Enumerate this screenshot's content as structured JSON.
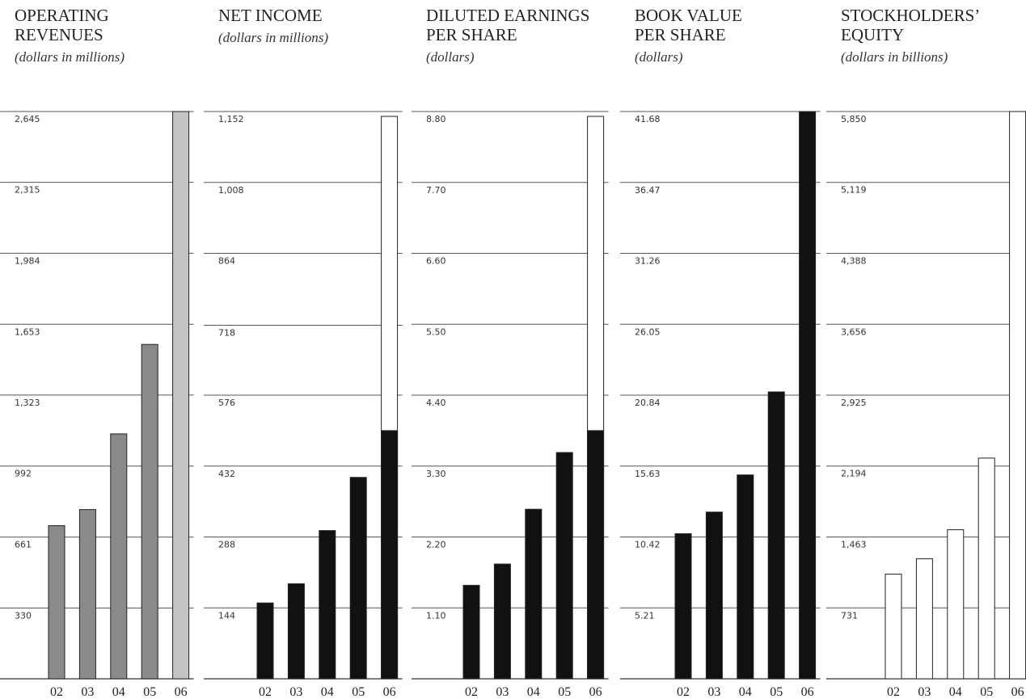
{
  "chart_data": [
    {
      "type": "bar",
      "title": [
        "OPERATING",
        "REVENUES"
      ],
      "subtitle": "(dollars in millions)",
      "categories": [
        "02",
        "03",
        "04",
        "05",
        "06"
      ],
      "values": [
        714,
        789,
        1142,
        1559,
        2645
      ],
      "colors": [
        "#8a8a8a",
        "#8a8a8a",
        "#8a8a8a",
        "#8a8a8a",
        "#c4c4c4"
      ],
      "ylim": [
        0,
        2645
      ],
      "yticks": [
        330,
        661,
        992,
        {
          "value": 1323,
          "label": "1,323"
        },
        {
          "value": 1653,
          "label": "1,653"
        },
        {
          "value": 1984,
          "label": "1,984"
        },
        {
          "value": 2315,
          "label": "2,315"
        },
        {
          "value": 2645,
          "label": "2,645"
        }
      ],
      "grid": true,
      "frame_last": false
    },
    {
      "type": "bar",
      "title": [
        "NET INCOME"
      ],
      "subtitle": "(dollars in millions)",
      "categories": [
        "02",
        "03",
        "04",
        "05",
        "06"
      ],
      "values": [
        154,
        193,
        301,
        409,
        504
      ],
      "colors": [
        "#111111",
        "#111111",
        "#111111",
        "#111111",
        "#111111"
      ],
      "ylim": [
        0,
        1152
      ],
      "yticks": [
        144,
        288,
        432,
        576,
        718,
        864,
        {
          "value": 1008,
          "label": "1,008"
        },
        {
          "value": 1152,
          "label": "1,152"
        }
      ],
      "grid": true,
      "frame_last": true
    },
    {
      "type": "bar",
      "title": [
        "DILUTED EARNINGS",
        "PER SHARE"
      ],
      "subtitle": "(dollars)",
      "categories": [
        "02",
        "03",
        "04",
        "05",
        "06"
      ],
      "values": [
        1.45,
        1.78,
        2.63,
        3.51,
        3.85
      ],
      "colors": [
        "#111111",
        "#111111",
        "#111111",
        "#111111",
        "#111111"
      ],
      "ylim": [
        0,
        8.8
      ],
      "yticks": [
        {
          "value": 1.1,
          "label": "1.10"
        },
        {
          "value": 2.2,
          "label": "2.20"
        },
        {
          "value": 3.3,
          "label": "3.30"
        },
        {
          "value": 4.4,
          "label": "4.40"
        },
        {
          "value": 5.5,
          "label": "5.50"
        },
        {
          "value": 6.6,
          "label": "6.60"
        },
        {
          "value": 7.7,
          "label": "7.70"
        },
        {
          "value": 8.8,
          "label": "8.80"
        }
      ],
      "grid": true,
      "frame_last": true
    },
    {
      "type": "bar",
      "title": [
        "BOOK VALUE",
        "PER SHARE"
      ],
      "subtitle": "(dollars)",
      "categories": [
        "02",
        "03",
        "04",
        "05",
        "06"
      ],
      "values": [
        10.66,
        12.25,
        14.98,
        21.08,
        41.68
      ],
      "colors": [
        "#111111",
        "#111111",
        "#111111",
        "#111111",
        "#111111"
      ],
      "ylim": [
        0,
        41.68
      ],
      "yticks": [
        5.21,
        10.42,
        15.63,
        20.84,
        {
          "value": 26.05,
          "label": "26.05"
        },
        31.26,
        36.47,
        41.68
      ],
      "grid": true,
      "frame_last": false
    },
    {
      "type": "bar",
      "title": [
        "STOCKHOLDERS’",
        "EQUITY"
      ],
      "subtitle": "(dollars in billions)",
      "categories": [
        "02",
        "03",
        "04",
        "05",
        "06"
      ],
      "values": [
        1080,
        1238,
        1537,
        2276,
        5850
      ],
      "colors": [
        "#ffffff",
        "#ffffff",
        "#ffffff",
        "#ffffff",
        "#ffffff"
      ],
      "ylim": [
        0,
        5850
      ],
      "yticks": [
        731,
        {
          "value": 1463,
          "label": "1,463"
        },
        {
          "value": 2194,
          "label": "2,194"
        },
        {
          "value": 2925,
          "label": "2,925"
        },
        {
          "value": 3656,
          "label": "3,656"
        },
        {
          "value": 4388,
          "label": "4,388"
        },
        {
          "value": 5119,
          "label": "5,119"
        },
        {
          "value": 5850,
          "label": "5,850"
        }
      ],
      "grid": true,
      "frame_last": false
    }
  ]
}
